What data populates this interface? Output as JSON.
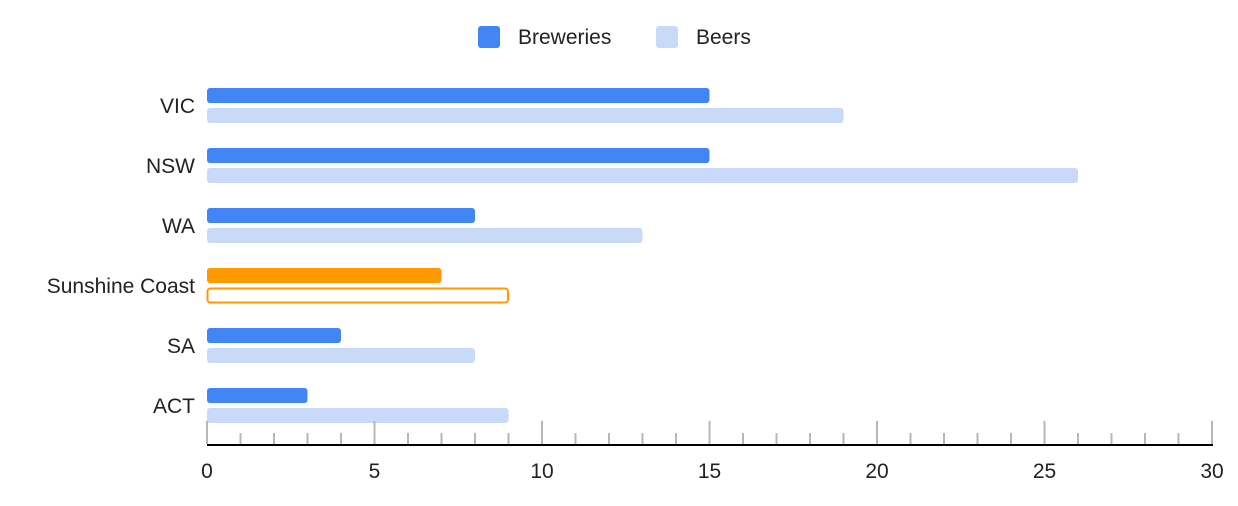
{
  "chart_data": {
    "type": "bar",
    "orientation": "horizontal",
    "categories": [
      "VIC",
      "NSW",
      "WA",
      "Sunshine Coast",
      "SA",
      "ACT"
    ],
    "series": [
      {
        "name": "Breweries",
        "values": [
          15,
          15,
          8,
          7,
          4,
          3
        ],
        "color": "#4285f4"
      },
      {
        "name": "Beers",
        "values": [
          19,
          26,
          13,
          9,
          8,
          9
        ],
        "color": "#c9daf8"
      }
    ],
    "highlight": {
      "category": "Sunshine Coast",
      "color": "#ff9900"
    },
    "xlim": [
      0,
      30
    ],
    "xticks": [
      "0",
      "5",
      "10",
      "15",
      "20",
      "25",
      "30"
    ],
    "legend_position": "top",
    "grid": false,
    "title": "",
    "xlabel": "",
    "ylabel": ""
  }
}
